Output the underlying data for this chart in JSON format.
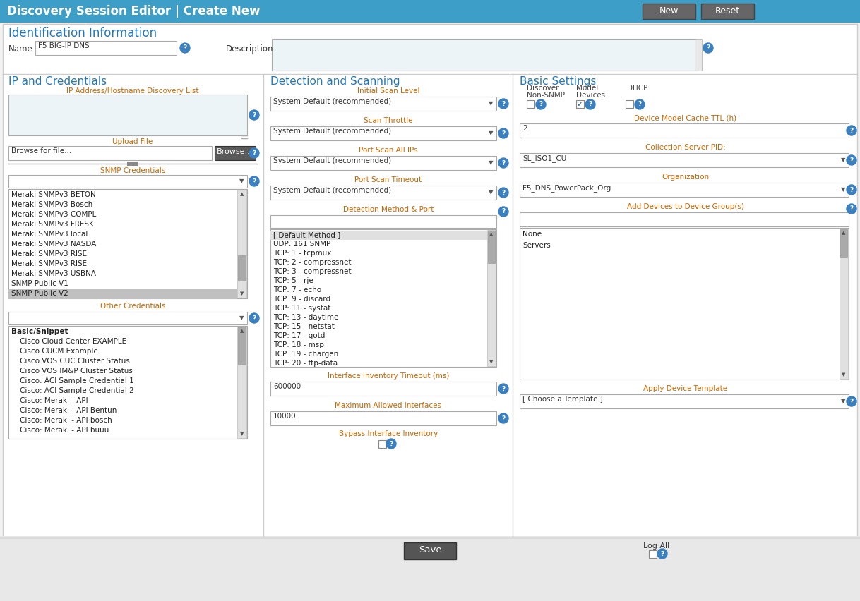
{
  "title_bar_text": "Discovery Session Editor | Create New",
  "title_bar_color": "#3d9ec8",
  "title_bar_text_color": "#ffffff",
  "btn_new_text": "New",
  "btn_reset_text": "Reset",
  "btn_color": "#666666",
  "bg_color": "#ffffff",
  "outer_bg": "#dddddd",
  "border_color": "#aaaaaa",
  "header_color": "#2277bb",
  "orange_color": "#cc6600",
  "blue_icon_color": "#3a7fbf",
  "list_bg": "#ffffff",
  "list_selected_bg": "#c0c0c0",
  "dropdown_bg": "#ffffff",
  "input_bg": "#ffffff",
  "textarea_bg": "#edf4f8",
  "scrollbar_bg": "#d8d8d8",
  "scrollbar_thumb": "#aaaaaa",
  "divider_color": "#bbbbbb",
  "section_header_color": "#2277bb",
  "id_section_title": "Identification Information",
  "name_label": "Name",
  "name_value": "F5 BIG-IP DNS",
  "desc_label": "Description",
  "col1_title": "IP and Credentials",
  "ip_list_label": "IP Address/Hostname Discovery List",
  "upload_label": "Upload File",
  "browse_placeholder": "Browse for file...",
  "browse_btn": "Browse...",
  "snmp_label": "SNMP Credentials",
  "snmp_items": [
    "Meraki SNMPv3 BETON",
    "Meraki SNMPv3 Bosch",
    "Meraki SNMPv3 COMPL",
    "Meraki SNMPv3 FRESK",
    "Meraki SNMPv3 local",
    "Meraki SNMPv3 NASDA",
    "Meraki SNMPv3 RISE",
    "Meraki SNMPv3 RISE",
    "Meraki SNMPv3 USBNA",
    "SNMP Public V1",
    "SNMP Public V2"
  ],
  "snmp_selected": "SNMP Public V2",
  "other_cred_label": "Other Credentials",
  "other_cred_items": [
    "Basic/Snippet",
    "Cisco Cloud Center EXAMPLE",
    "Cisco CUCM Example",
    "Cisco VOS CUC Cluster Status",
    "Cisco VOS IM&P Cluster Status",
    "Cisco: ACI Sample Credential 1",
    "Cisco: ACI Sample Credential 2",
    "Cisco: Meraki - API",
    "Cisco: Meraki - API Bentun",
    "Cisco: Meraki - API bosch",
    "Cisco: Meraki - API buuu"
  ],
  "col2_title": "Detection and Scanning",
  "scan_level_label": "Initial Scan Level",
  "scan_throttle_label": "Scan Throttle",
  "port_scan_label": "Port Scan All IPs",
  "port_timeout_label": "Port Scan Timeout",
  "detect_method_label": "Detection Method & Port",
  "detect_items": [
    "[ Default Method ]",
    "UDP: 161 SNMP",
    "TCP: 1 - tcpmux",
    "TCP: 2 - compressnet",
    "TCP: 3 - compressnet",
    "TCP: 5 - rje",
    "TCP: 7 - echo",
    "TCP: 9 - discard",
    "TCP: 11 - systat",
    "TCP: 13 - daytime",
    "TCP: 15 - netstat",
    "TCP: 17 - qotd",
    "TCP: 18 - msp",
    "TCP: 19 - chargen",
    "TCP: 20 - ftp-data"
  ],
  "dropdown_text": "System Default (recommended)",
  "iface_timeout_label": "Interface Inventory Timeout (ms)",
  "iface_timeout_val": "600000",
  "max_iface_label": "Maximum Allowed Interfaces",
  "max_iface_val": "10000",
  "bypass_label": "Bypass Interface Inventory",
  "col3_title": "Basic Settings",
  "discover_label": "Discover",
  "nonsnmp_label": "Non-SNMP",
  "model_label": "Model",
  "devices_label": "Devices",
  "dhcp_label": "DHCP",
  "device_model_ttl_label": "Device Model Cache TTL (h)",
  "ttl_val": "2",
  "collection_server_label": "Collection Server PID:",
  "collection_val": "SL_ISO1_CU",
  "org_label": "Organization",
  "org_val": "F5_DNS_PowerPack_Org",
  "add_devices_label": "Add Devices to Device Group(s)",
  "device_groups": [
    "None",
    "Servers"
  ],
  "apply_template_label": "Apply Device Template",
  "template_val": "[ Choose a Template ]",
  "save_btn": "Save",
  "log_all_label": "Log All"
}
